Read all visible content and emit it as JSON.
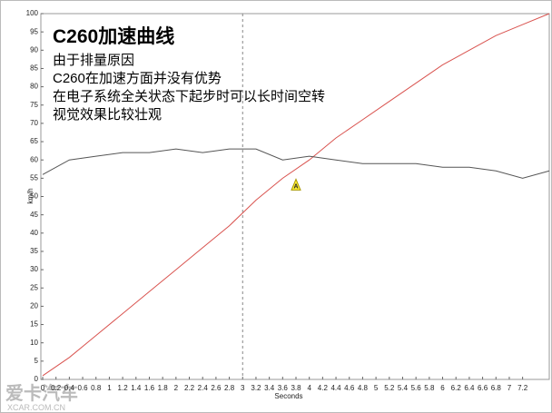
{
  "chart_data": {
    "type": "line",
    "title": "C260加速曲线",
    "annotations": [
      "由于排量原因",
      "C260在加速方面并没有优势",
      "在电子系统全关状态下起步时可以长时间空转",
      "视觉效果比较壮观"
    ],
    "watermark": [
      "爱卡汽车",
      "XCAR.COM.CN"
    ],
    "x_label": "Seconds",
    "y_label": "km/h",
    "x": [
      0,
      0.4,
      0.8,
      1.2,
      1.6,
      2,
      2.4,
      2.8,
      3.2,
      3.6,
      4,
      4.4,
      4.8,
      5.2,
      5.6,
      6,
      6.4,
      6.8,
      7.2,
      7.6
    ],
    "series": [
      {
        "color": "#d9534f",
        "values": [
          1,
          6,
          12,
          18,
          24,
          30,
          36,
          42,
          49,
          55,
          60,
          66,
          71,
          76,
          81,
          86,
          90,
          94,
          97,
          100
        ]
      },
      {
        "color": "#555555",
        "values": [
          56,
          60,
          61,
          62,
          62,
          63,
          62,
          63,
          63,
          60,
          61,
          60,
          59,
          59,
          59,
          58,
          58,
          57,
          55,
          57
        ]
      }
    ],
    "cursor_x": 3,
    "marker": {
      "label": "A",
      "x": 3.8,
      "y": 53,
      "color": "#ffee33"
    },
    "xlim": [
      0,
      7.6
    ],
    "ylim": [
      0,
      100
    ],
    "xticks": [
      0,
      0.2,
      0.4,
      0.6,
      0.8,
      1,
      1.2,
      1.4,
      1.6,
      1.8,
      2,
      2.2,
      2.4,
      2.6,
      2.8,
      3,
      3.2,
      3.4,
      3.6,
      3.8,
      4,
      4.2,
      4.4,
      4.6,
      4.8,
      5,
      5.2,
      5.4,
      5.6,
      5.8,
      6,
      6.2,
      6.4,
      6.6,
      6.8,
      7,
      7.2
    ],
    "yticks": [
      0,
      5,
      10,
      15,
      20,
      25,
      30,
      35,
      40,
      45,
      50,
      55,
      60,
      65,
      70,
      75,
      80,
      85,
      90,
      95,
      100
    ]
  }
}
